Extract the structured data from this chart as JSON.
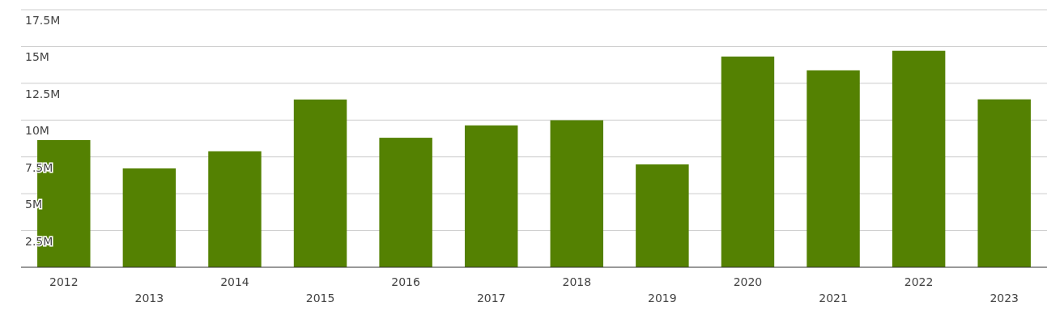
{
  "chart_data": {
    "type": "bar",
    "categories": [
      "2012",
      "2013",
      "2014",
      "2015",
      "2016",
      "2017",
      "2018",
      "2019",
      "2020",
      "2021",
      "2022",
      "2023"
    ],
    "values": [
      8.64,
      6.72,
      7.88,
      11.4,
      8.8,
      9.64,
      9.99,
      6.99,
      14.32,
      13.38,
      14.71,
      11.41
    ],
    "color": "#548102",
    "ylim": [
      0,
      17.5
    ],
    "yticks": [
      {
        "value": 2.5,
        "label": "2.5M"
      },
      {
        "value": 5,
        "label": "5M"
      },
      {
        "value": 7.5,
        "label": "7.5M"
      },
      {
        "value": 10,
        "label": "10M"
      },
      {
        "value": 12.5,
        "label": "12.5M"
      },
      {
        "value": 15,
        "label": "15M"
      },
      {
        "value": 17.5,
        "label": "17.5M"
      }
    ],
    "grid": "y"
  }
}
